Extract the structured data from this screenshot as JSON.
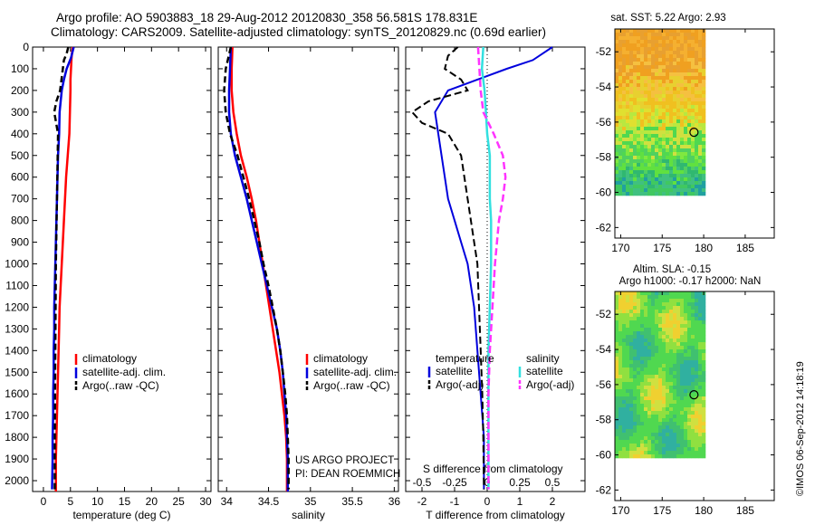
{
  "header": {
    "line1": "Argo profile: AO 5903883_18 29-Aug-2012 20120830_358 56.581S 178.831E",
    "line2": "Climatology: CARS2009. Satellite-adjusted climatology: synTS_20120829.nc (0.69d earlier)"
  },
  "footer": {
    "project": "US ARGO PROJECT",
    "pi": "PI: DEAN ROEMMICH",
    "stamp": "©IMOS 06-Sep-2012 14:18:19"
  },
  "colors": {
    "climatology": "#ff0000",
    "satellite": "#0000dd",
    "argo": "#000000",
    "salinity_sat": "#33e0e0",
    "salinity_argo": "#ff33ff"
  },
  "chart_data": [
    {
      "type": "line",
      "id": "temperature",
      "xlabel": "temperature (deg C)",
      "xlim": [
        -2,
        31
      ],
      "xticks": [
        0,
        5,
        10,
        15,
        20,
        25,
        30
      ],
      "ylim": [
        2050,
        0
      ],
      "yticks": [
        0,
        100,
        200,
        300,
        400,
        500,
        600,
        700,
        800,
        900,
        1000,
        1100,
        1200,
        1300,
        1400,
        1500,
        1600,
        1700,
        1800,
        1900,
        2000
      ],
      "legend": [
        "climatology",
        "satellite-adj. clim.",
        "Argo(..raw -QC)"
      ],
      "legend_position": "lower-right",
      "series": [
        {
          "name": "climatology",
          "x": [
            5.4,
            5.2,
            5.1,
            5.0,
            5.0,
            4.9,
            4.8,
            4.5,
            4.2,
            4.0,
            3.8,
            3.6,
            3.4,
            3.2,
            3.0,
            2.9,
            2.8,
            2.7,
            2.6,
            2.5,
            2.4,
            2.3,
            2.3
          ],
          "y": [
            0,
            50,
            100,
            150,
            200,
            300,
            400,
            500,
            600,
            700,
            800,
            900,
            1000,
            1100,
            1200,
            1300,
            1400,
            1500,
            1600,
            1700,
            1800,
            1900,
            2050
          ]
        },
        {
          "name": "satellite-adj. clim.",
          "x": [
            5.6,
            5.1,
            4.3,
            3.8,
            3.4,
            3.0,
            2.9,
            2.7,
            2.6,
            2.5,
            2.4,
            2.3,
            2.2,
            2.1,
            2.0,
            2.0,
            1.9,
            1.9,
            1.8,
            1.8,
            1.7,
            1.7,
            1.6
          ],
          "y": [
            0,
            50,
            100,
            150,
            200,
            300,
            400,
            500,
            600,
            700,
            800,
            900,
            1000,
            1100,
            1200,
            1300,
            1400,
            1500,
            1600,
            1700,
            1800,
            1900,
            2040
          ]
        },
        {
          "name": "Argo(..raw -QC)",
          "x": [
            4.6,
            4.3,
            3.8,
            3.5,
            3.1,
            2.4,
            2.0,
            2.7,
            2.5,
            2.3,
            2.2,
            2.1,
            2.1
          ],
          "y": [
            0,
            30,
            60,
            120,
            200,
            250,
            300,
            400,
            700,
            1000,
            1400,
            1800,
            2040
          ]
        }
      ]
    },
    {
      "type": "line",
      "id": "salinity",
      "xlabel": "salinity",
      "xlim": [
        33.9,
        36.05
      ],
      "xticks": [
        34,
        34.5,
        35,
        35.5,
        36
      ],
      "ylim": [
        2050,
        0
      ],
      "legend": [
        "climatology",
        "satellite-adj. clim.",
        "Argo(..raw -QC)"
      ],
      "legend_position": "lower-right",
      "series": [
        {
          "name": "climatology",
          "x": [
            34.07,
            34.06,
            34.06,
            34.08,
            34.12,
            34.17,
            34.24,
            34.3,
            34.35,
            34.39,
            34.43,
            34.47,
            34.51,
            34.55,
            34.59,
            34.63,
            34.66,
            34.69,
            34.71,
            34.72,
            34.72,
            34.72
          ],
          "y": [
            0,
            100,
            200,
            300,
            400,
            500,
            600,
            700,
            800,
            900,
            1000,
            1100,
            1200,
            1300,
            1400,
            1500,
            1600,
            1700,
            1800,
            1900,
            2000,
            2050
          ]
        },
        {
          "name": "satellite-adj. clim.",
          "x": [
            34.05,
            34.04,
            34.03,
            34.03,
            34.05,
            34.1,
            34.17,
            34.24,
            34.3,
            34.36,
            34.42,
            34.48,
            34.54,
            34.6,
            34.64,
            34.67,
            34.69,
            34.71,
            34.72,
            34.73,
            34.73,
            34.73
          ],
          "y": [
            0,
            100,
            200,
            300,
            400,
            500,
            600,
            700,
            800,
            900,
            1000,
            1100,
            1200,
            1300,
            1400,
            1500,
            1600,
            1700,
            1800,
            1900,
            2000,
            2050
          ]
        },
        {
          "name": "Argo(..raw -QC)",
          "x": [
            34.05,
            33.99,
            33.97,
            33.99,
            34.04,
            34.13,
            34.2,
            34.27,
            34.33,
            34.39,
            34.44,
            34.5,
            34.55,
            34.6,
            34.64,
            34.67,
            34.7,
            34.72,
            34.73,
            34.74,
            34.74
          ],
          "y": [
            0,
            100,
            200,
            300,
            400,
            500,
            600,
            700,
            800,
            900,
            1000,
            1100,
            1200,
            1300,
            1400,
            1500,
            1600,
            1700,
            1800,
            1900,
            2040
          ]
        }
      ]
    },
    {
      "type": "line",
      "id": "difference",
      "xlabel": "T difference from climatology",
      "xlabel_top": "S difference from climatology",
      "xlim": [
        -2.5,
        3
      ],
      "xticks": [
        -2,
        -1,
        0,
        1,
        2
      ],
      "xticks_top": [
        -0.5,
        -0.25,
        0,
        0.25,
        0.5
      ],
      "ylim": [
        2050,
        0
      ],
      "legend_temperature": {
        "title": "temperature",
        "items": [
          "satellite",
          "Argo(-adj)"
        ]
      },
      "legend_salinity": {
        "title": "salinity",
        "items": [
          "satellite",
          "Argo(-adj)"
        ]
      },
      "series": [
        {
          "name": "T satellite",
          "x": [
            2.0,
            1.7,
            1.4,
            0.6,
            -0.3,
            -1.2,
            -1.6,
            -1.5,
            -1.4,
            -1.3,
            -1.2,
            -1.0,
            -0.8,
            -0.6,
            -0.4,
            -0.3,
            -0.2,
            -0.1,
            -0.1,
            -0.1
          ],
          "y": [
            0,
            30,
            60,
            100,
            150,
            200,
            300,
            400,
            500,
            600,
            700,
            800,
            900,
            1000,
            1200,
            1400,
            1600,
            1800,
            1950,
            2040
          ]
        },
        {
          "name": "T Argo(-adj)",
          "x": [
            -0.9,
            -1.2,
            -1.3,
            -0.8,
            -0.6,
            -1.8,
            -2.3,
            -2.0,
            -1.2,
            -0.8,
            -0.7,
            -0.6,
            -0.5,
            -0.4,
            -0.3,
            -0.25,
            -0.2,
            -0.15,
            -0.12,
            -0.1
          ],
          "y": [
            0,
            40,
            100,
            150,
            200,
            250,
            300,
            350,
            400,
            500,
            600,
            700,
            800,
            900,
            1000,
            1200,
            1400,
            1600,
            1800,
            2040
          ]
        },
        {
          "name": "S satellite",
          "x": [
            -0.03,
            -0.04,
            -0.02,
            -0.01,
            0,
            0.02,
            0.02,
            0.02,
            0.03,
            0.03,
            0.02,
            0.01,
            0.01,
            0.01,
            0.01
          ],
          "y": [
            0,
            100,
            200,
            300,
            400,
            500,
            600,
            700,
            800,
            1000,
            1200,
            1400,
            1600,
            1800,
            2040
          ]
        },
        {
          "name": "S Argo(-adj)",
          "x": [
            -0.07,
            -0.06,
            -0.05,
            -0.03,
            0.05,
            0.12,
            0.14,
            0.12,
            0.09,
            0.06,
            0.04,
            0.02,
            0.01,
            0.01,
            0.01
          ],
          "y": [
            0,
            100,
            200,
            300,
            400,
            500,
            600,
            700,
            800,
            1000,
            1200,
            1400,
            1600,
            1800,
            2040
          ]
        }
      ]
    },
    {
      "type": "heatmap",
      "id": "sst_map",
      "title": "sat. SST: 5.22 Argo: 2.93",
      "xlim": [
        169.3,
        188.5
      ],
      "ylim": [
        -62.6,
        -50.7
      ],
      "xticks": [
        170,
        175,
        180,
        185
      ],
      "yticks": [
        -62,
        -60,
        -58,
        -56,
        -54,
        -52
      ],
      "data_extent": {
        "lon": [
          169.3,
          180.2
        ],
        "lat": [
          -60.1,
          -50.7
        ]
      },
      "profile_location": {
        "lon": 178.83,
        "lat": -56.58
      }
    },
    {
      "type": "heatmap",
      "id": "sla_map",
      "title_line1": "Altim. SLA: -0.15",
      "title_line2": "Argo h1000: -0.17 h2000: NaN",
      "xlim": [
        169.3,
        188.5
      ],
      "ylim": [
        -62.6,
        -50.7
      ],
      "xticks": [
        170,
        175,
        180,
        185
      ],
      "yticks": [
        -62,
        -60,
        -58,
        -56,
        -54,
        -52
      ],
      "data_extent": {
        "lon": [
          169.3,
          180.2
        ],
        "lat": [
          -60.1,
          -50.7
        ]
      },
      "profile_location": {
        "lon": 178.83,
        "lat": -56.58
      }
    }
  ]
}
